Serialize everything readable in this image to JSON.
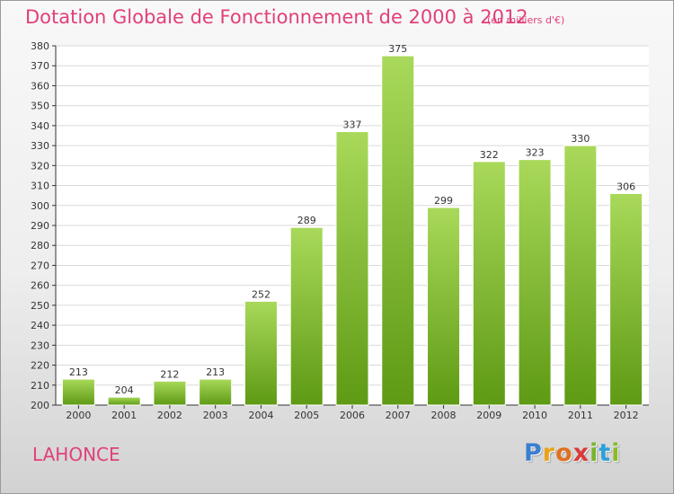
{
  "title": "Dotation Globale de Fonctionnement de 2000 à 2012",
  "unit_note": "(en milliers d'€)",
  "commune": "LAHONCE",
  "brand": {
    "letters": [
      "P",
      "r",
      "o",
      "x",
      "i",
      "t",
      "i"
    ],
    "colors": [
      "#3a7fd0",
      "#e8a318",
      "#e07020",
      "#d83a3a",
      "#7ab32e",
      "#2f9fd8",
      "#8aba2c"
    ]
  },
  "colors": {
    "bar_top": "#a9d95a",
    "bar_bottom": "#5e9a14",
    "grid": "#d9d9d9",
    "axis": "#333333",
    "label": "#333333",
    "title": "#e0407a"
  },
  "chart_data": {
    "type": "bar",
    "title": "Dotation Globale de Fonctionnement de 2000 à 2012",
    "xlabel": "",
    "ylabel": "",
    "categories": [
      "2000",
      "2001",
      "2002",
      "2003",
      "2004",
      "2005",
      "2006",
      "2007",
      "2008",
      "2009",
      "2010",
      "2011",
      "2012"
    ],
    "values": [
      213,
      204,
      212,
      213,
      252,
      289,
      337,
      375,
      299,
      322,
      323,
      330,
      306
    ],
    "ylim": [
      200,
      380
    ],
    "ytick_step": 10,
    "grid": true,
    "legend": "none"
  }
}
